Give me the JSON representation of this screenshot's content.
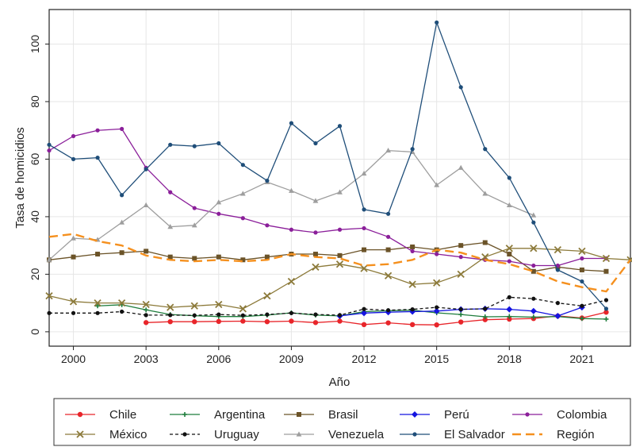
{
  "chart_data": {
    "type": "line",
    "xlabel": "Año",
    "ylabel": "Tasa de homicidios",
    "xlim": [
      1999,
      2023
    ],
    "ylim": [
      -5,
      112
    ],
    "x_ticks": [
      2000,
      2003,
      2006,
      2009,
      2012,
      2015,
      2018,
      2021
    ],
    "y_ticks": [
      0,
      20,
      40,
      60,
      80,
      100
    ],
    "legend_position": "bottom",
    "x": [
      1999,
      2000,
      2001,
      2002,
      2003,
      2004,
      2005,
      2006,
      2007,
      2008,
      2009,
      2010,
      2011,
      2012,
      2013,
      2014,
      2015,
      2016,
      2017,
      2018,
      2019,
      2020,
      2021,
      2022,
      2023
    ],
    "series": [
      {
        "name": "Chile",
        "color": "#e8252a",
        "marker": "circle",
        "dash": "solid",
        "values": [
          null,
          null,
          null,
          null,
          3.2,
          3.5,
          3.5,
          3.6,
          3.7,
          3.5,
          3.7,
          3.2,
          3.7,
          2.5,
          3.1,
          2.5,
          2.4,
          3.4,
          4.2,
          4.4,
          4.6,
          5.5,
          4.8,
          6.8,
          null
        ]
      },
      {
        "name": "Argentina",
        "color": "#1e7d3c",
        "marker": "plus",
        "dash": "solid",
        "values": [
          null,
          null,
          9.0,
          9.4,
          7.6,
          6.0,
          5.6,
          5.3,
          5.3,
          5.8,
          6.6,
          5.8,
          5.5,
          7.0,
          7.3,
          7.5,
          6.6,
          6.0,
          5.2,
          5.3,
          5.1,
          5.3,
          4.6,
          4.4,
          null
        ]
      },
      {
        "name": "Brasil",
        "color": "#6b5328",
        "marker": "square",
        "dash": "solid",
        "values": [
          25.0,
          26.0,
          27.0,
          27.5,
          28.0,
          26.0,
          25.5,
          26.0,
          25.0,
          26.0,
          27.0,
          27.0,
          26.5,
          28.5,
          28.5,
          29.5,
          28.5,
          30.0,
          31.0,
          27.0,
          21.0,
          22.5,
          21.5,
          21.0,
          null
        ]
      },
      {
        "name": "Perú",
        "color": "#1515e0",
        "marker": "diamond",
        "dash": "solid",
        "values": [
          null,
          null,
          null,
          null,
          null,
          null,
          null,
          null,
          null,
          null,
          null,
          null,
          5.5,
          6.5,
          6.8,
          7.0,
          7.2,
          7.8,
          8.0,
          7.8,
          7.2,
          5.5,
          8.5,
          null,
          null
        ]
      },
      {
        "name": "Colombia",
        "color": "#8b1f9a",
        "marker": "dot",
        "dash": "solid",
        "values": [
          63.0,
          68.0,
          70.0,
          70.5,
          57.0,
          48.5,
          43.0,
          41.0,
          39.5,
          37.0,
          35.5,
          34.5,
          35.5,
          36.0,
          33.0,
          28.0,
          27.0,
          26.0,
          25.0,
          24.5,
          23.0,
          23.0,
          25.5,
          25.5,
          null
        ]
      },
      {
        "name": "México",
        "color": "#8c7a3a",
        "marker": "x",
        "dash": "solid",
        "values": [
          12.5,
          10.5,
          10.0,
          10.0,
          9.5,
          8.5,
          9.0,
          9.5,
          8.0,
          12.5,
          17.5,
          22.5,
          23.5,
          22.0,
          19.5,
          16.5,
          17.0,
          20.0,
          26.0,
          29.0,
          29.0,
          28.5,
          28.0,
          25.5,
          25.0
        ]
      },
      {
        "name": "Uruguay",
        "color": "#111111",
        "marker": "dot",
        "dash": "dashed",
        "values": [
          6.5,
          6.5,
          6.5,
          7.0,
          5.8,
          5.8,
          5.7,
          6.0,
          5.7,
          6.0,
          6.5,
          6.0,
          5.8,
          7.9,
          7.5,
          7.8,
          8.5,
          7.8,
          8.0,
          12.0,
          11.5,
          10.0,
          9.0,
          11.0,
          null
        ]
      },
      {
        "name": "Venezuela",
        "color": "#9e9e9e",
        "marker": "triangle",
        "dash": "solid",
        "values": [
          25.0,
          32.5,
          32.0,
          38.0,
          44.0,
          36.5,
          37.0,
          45.0,
          48.0,
          52.0,
          49.0,
          45.5,
          48.5,
          55.0,
          63.0,
          62.5,
          51.0,
          57.0,
          48.0,
          44.0,
          40.5,
          null,
          null,
          null,
          null
        ]
      },
      {
        "name": "El Salvador",
        "color": "#1f4e79",
        "marker": "dot",
        "dash": "solid",
        "values": [
          65.0,
          60.0,
          60.5,
          47.5,
          56.5,
          65.0,
          64.5,
          65.5,
          58.0,
          52.5,
          72.5,
          65.5,
          71.5,
          42.5,
          41.0,
          63.5,
          107.5,
          85.0,
          63.5,
          53.5,
          38.0,
          21.5,
          17.5,
          8.0,
          null
        ]
      },
      {
        "name": "Región",
        "color": "#f5901e",
        "marker": "none",
        "dash": "longdash",
        "values": [
          33.0,
          34.0,
          31.5,
          30.0,
          26.5,
          25.0,
          24.5,
          25.0,
          24.5,
          25.0,
          27.0,
          26.0,
          25.5,
          23.0,
          23.5,
          25.0,
          28.5,
          27.5,
          25.0,
          23.5,
          21.0,
          17.5,
          15.5,
          14.0,
          25.0
        ]
      }
    ],
    "legend_rows": [
      [
        "Chile",
        "Argentina",
        "Brasil",
        "Perú",
        "Colombia"
      ],
      [
        "México",
        "Uruguay",
        "Venezuela",
        "El Salvador",
        "Región"
      ]
    ]
  }
}
